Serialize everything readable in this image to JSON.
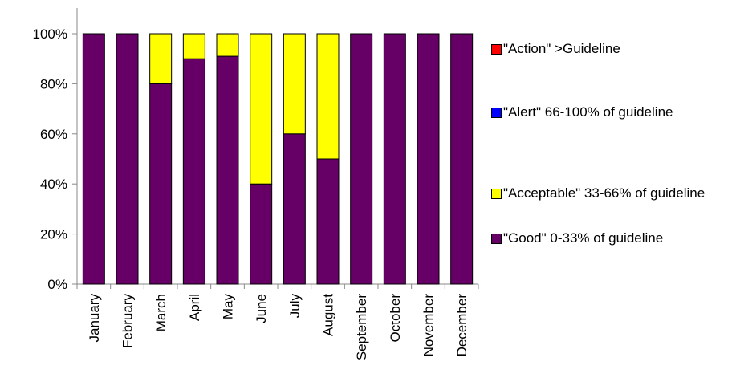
{
  "chart_data": {
    "type": "stacked_bar",
    "categories": [
      "January",
      "February",
      "March",
      "April",
      "May",
      "June",
      "July",
      "August",
      "September",
      "October",
      "November",
      "December"
    ],
    "series": [
      {
        "name": "\"Good\" 0-33% of guideline",
        "color": "#660066",
        "values": [
          100,
          100,
          80,
          90,
          91,
          40,
          60,
          50,
          100,
          100,
          100,
          100
        ]
      },
      {
        "name": "\"Acceptable\" 33-66% of guideline",
        "color": "#ffff00",
        "values": [
          0,
          0,
          20,
          10,
          9,
          60,
          40,
          50,
          0,
          0,
          0,
          0
        ]
      },
      {
        "name": "\"Alert\" 66-100% of guideline",
        "color": "#0000ff",
        "values": [
          0,
          0,
          0,
          0,
          0,
          0,
          0,
          0,
          0,
          0,
          0,
          0
        ]
      },
      {
        "name": "\"Action\" >Guideline",
        "color": "#ff0000",
        "values": [
          0,
          0,
          0,
          0,
          0,
          0,
          0,
          0,
          0,
          0,
          0,
          0
        ]
      }
    ],
    "ylim": [
      0,
      100
    ],
    "yticks": [
      {
        "value": 0,
        "label": "0%"
      },
      {
        "value": 20,
        "label": "20%"
      },
      {
        "value": 40,
        "label": "40%"
      },
      {
        "value": 60,
        "label": "60%"
      },
      {
        "value": 80,
        "label": "80%"
      },
      {
        "value": 100,
        "label": "100%"
      }
    ],
    "legend": "right"
  }
}
